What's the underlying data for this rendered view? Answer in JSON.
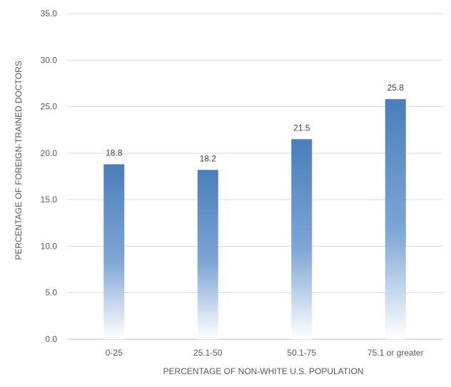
{
  "chart_data": {
    "type": "bar",
    "categories": [
      "0-25",
      "25.1-50",
      "50.1-75",
      "75.1 or greater"
    ],
    "values": [
      18.8,
      18.2,
      21.5,
      25.8
    ],
    "data_labels": [
      "18.8",
      "18.2",
      "21.5",
      "25.8"
    ],
    "xlabel": "PERCENTAGE OF NON-WHITE U.S. POPULATION",
    "ylabel": "PERCENTAGE OF FOREIGN-TRAINED DOCTORS",
    "ylim": [
      0,
      35
    ],
    "yticks": [
      0,
      5,
      10,
      15,
      20,
      25,
      30,
      35
    ],
    "ytick_labels": [
      "0.0",
      "5.0",
      "10.0",
      "15.0",
      "20.0",
      "25.0",
      "30.0",
      "35.0"
    ],
    "grid": true,
    "legend": "none",
    "colors": {
      "bar_top": "#4a7ebb",
      "bar_bottom": "#ffffff",
      "grid": "#d9d9d9",
      "axis_text": "#595959",
      "label_text": "#404040"
    }
  }
}
